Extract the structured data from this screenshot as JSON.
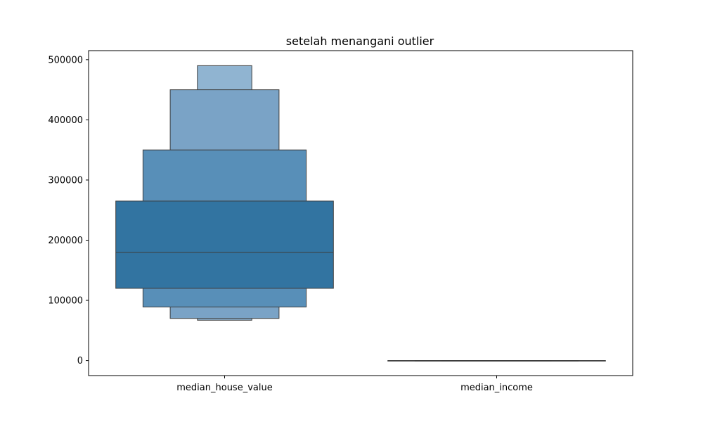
{
  "chart_data": {
    "type": "boxen",
    "title": "setelah menangani outlier",
    "xlabel": "",
    "ylabel": "",
    "categories": [
      "median_house_value",
      "median_income"
    ],
    "ylim": [
      -25000,
      515000
    ],
    "yticks": [
      0,
      100000,
      200000,
      300000,
      400000,
      500000
    ],
    "ytick_labels": [
      "0",
      "100000",
      "200000",
      "300000",
      "400000",
      "500000"
    ],
    "grid": false,
    "series": [
      {
        "category": "median_house_value",
        "median": 180000,
        "boxes": [
          {
            "low": 120000,
            "high": 265000,
            "color": "#3274a1"
          },
          {
            "low": 89000,
            "high": 350000,
            "color": "#588fb8"
          },
          {
            "low": 70000,
            "high": 450000,
            "color": "#7aa3c6"
          },
          {
            "low": 67000,
            "high": 490000,
            "color": "#90b4d1"
          }
        ]
      },
      {
        "category": "median_income",
        "median": 3.5,
        "boxes": [
          {
            "low": 2.5,
            "high": 4.7,
            "color": "#3274a1"
          },
          {
            "low": 1.9,
            "high": 6.0,
            "color": "#588fb8"
          },
          {
            "low": 1.5,
            "high": 7.5,
            "color": "#7aa3c6"
          },
          {
            "low": 0.5,
            "high": 8.0,
            "color": "#90b4d1"
          }
        ]
      }
    ]
  }
}
